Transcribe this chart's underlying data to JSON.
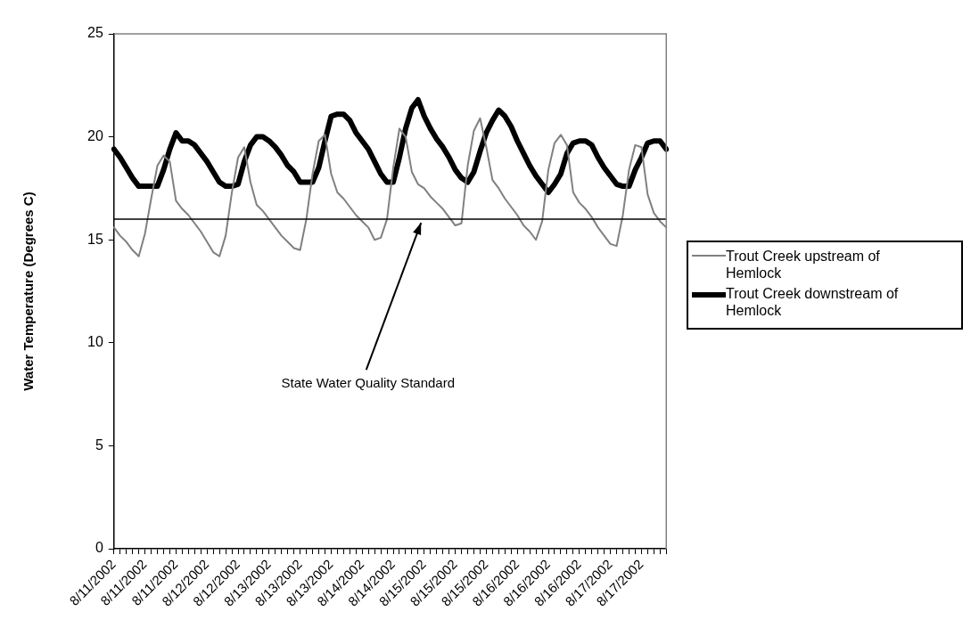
{
  "chart_data": {
    "type": "line",
    "ylabel": "Water Temperature (Degrees C)",
    "categories": [
      "8/11/2002",
      null,
      null,
      null,
      null,
      "8/11/2002",
      null,
      null,
      null,
      null,
      "8/11/2002",
      null,
      null,
      null,
      null,
      "8/12/2002",
      null,
      null,
      null,
      null,
      "8/12/2002",
      null,
      null,
      null,
      null,
      "8/13/2002",
      null,
      null,
      null,
      null,
      "8/13/2002",
      null,
      null,
      null,
      null,
      "8/13/2002",
      null,
      null,
      null,
      null,
      "8/14/2002",
      null,
      null,
      null,
      null,
      "8/14/2002",
      null,
      null,
      null,
      null,
      "8/15/2002",
      null,
      null,
      null,
      null,
      "8/15/2002",
      null,
      null,
      null,
      null,
      "8/15/2002",
      null,
      null,
      null,
      null,
      "8/16/2002",
      null,
      null,
      null,
      null,
      "8/16/2002",
      null,
      null,
      null,
      null,
      "8/16/2002",
      null,
      null,
      null,
      null,
      "8/17/2002",
      null,
      null,
      null,
      null,
      "8/17/2002",
      null,
      null,
      null,
      null
    ],
    "series": [
      {
        "name": "Trout Creek upstream of Hemlock",
        "color": "#808080",
        "values": [
          15.6,
          15.2,
          14.9,
          14.5,
          14.2,
          15.3,
          17.0,
          18.6,
          19.1,
          18.8,
          16.9,
          16.5,
          16.2,
          15.8,
          15.4,
          14.9,
          14.4,
          14.2,
          15.2,
          17.3,
          19.0,
          19.5,
          17.8,
          16.7,
          16.4,
          16.0,
          15.6,
          15.2,
          14.9,
          14.6,
          14.5,
          16.0,
          18.2,
          19.8,
          20.1,
          18.2,
          17.3,
          17.0,
          16.6,
          16.2,
          15.9,
          15.6,
          15.0,
          15.1,
          16.0,
          18.5,
          20.4,
          20.0,
          18.3,
          17.7,
          17.5,
          17.1,
          16.8,
          16.5,
          16.1,
          15.7,
          15.8,
          18.6,
          20.3,
          20.9,
          19.5,
          17.9,
          17.5,
          17.0,
          16.6,
          16.2,
          15.7,
          15.4,
          15.0,
          15.9,
          18.4,
          19.7,
          20.1,
          19.6,
          17.3,
          16.8,
          16.5,
          16.1,
          15.6,
          15.2,
          14.8,
          14.7,
          16.2,
          18.4,
          19.6,
          19.5,
          17.2,
          16.3,
          15.9,
          15.6
        ]
      },
      {
        "name": "Trout Creek downstream of Hemlock",
        "color": "#000000",
        "values": [
          19.4,
          19.0,
          18.5,
          18.0,
          17.6,
          17.6,
          17.6,
          17.6,
          18.4,
          19.4,
          20.2,
          19.8,
          19.8,
          19.6,
          19.2,
          18.8,
          18.3,
          17.8,
          17.6,
          17.6,
          17.7,
          18.8,
          19.6,
          20.0,
          20.0,
          19.8,
          19.5,
          19.1,
          18.6,
          18.3,
          17.8,
          17.8,
          17.8,
          18.5,
          19.8,
          21.0,
          21.1,
          21.1,
          20.8,
          20.2,
          19.8,
          19.4,
          18.8,
          18.2,
          17.8,
          17.8,
          19.0,
          20.4,
          21.4,
          21.8,
          21.0,
          20.4,
          19.9,
          19.5,
          19.0,
          18.4,
          18.0,
          17.8,
          18.3,
          19.3,
          20.2,
          20.8,
          21.3,
          21.0,
          20.5,
          19.8,
          19.2,
          18.6,
          18.1,
          17.7,
          17.3,
          17.7,
          18.2,
          19.2,
          19.7,
          19.8,
          19.8,
          19.6,
          19.0,
          18.5,
          18.1,
          17.7,
          17.6,
          17.6,
          18.4,
          19.0,
          19.7,
          19.8,
          19.8,
          19.4
        ]
      }
    ],
    "ylim": [
      0,
      25
    ],
    "yticks": [
      0,
      5,
      10,
      15,
      20,
      25
    ],
    "ref_lines": [
      {
        "axis": "y",
        "value": 16,
        "label": "State Water Quality Standard",
        "color": "#000000"
      }
    ],
    "grid": false,
    "legend": "right",
    "marker": "none",
    "line_style": "solid"
  }
}
